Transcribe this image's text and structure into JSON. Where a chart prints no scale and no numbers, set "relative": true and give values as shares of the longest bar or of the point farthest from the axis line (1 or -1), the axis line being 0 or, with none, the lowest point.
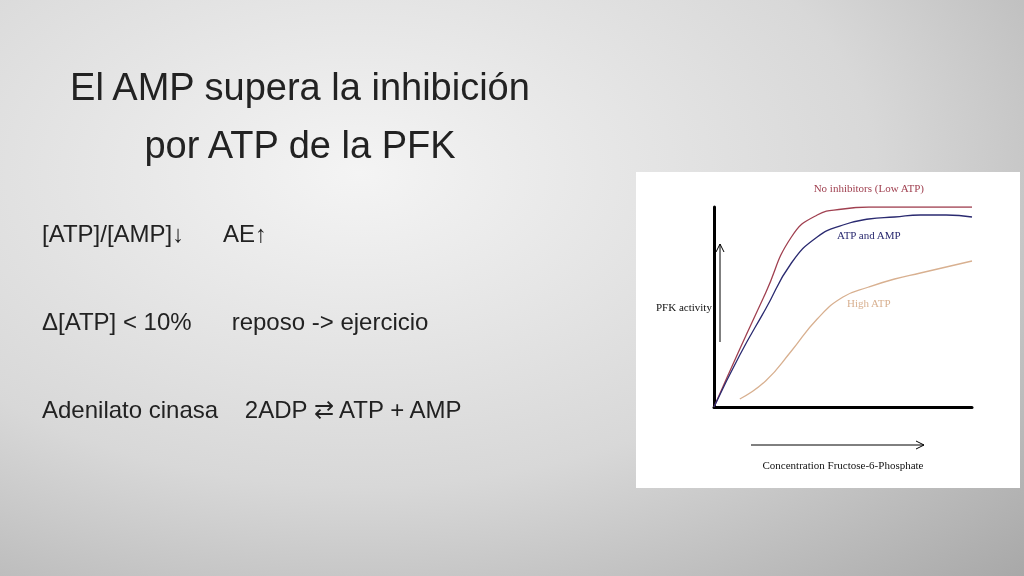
{
  "chart_data": {
    "type": "line",
    "title": "El AMP supera la inhibición por ATP de la PFK",
    "xlabel": "Concentration Fructose-6-Phosphate",
    "ylabel": "PFK activity",
    "relative": true,
    "annotations": [
      "[ATP]/[AMP]↓      AE↑",
      "Δ[ATP] < 10%      reposo -> ejercicio",
      "Adenilato cinasa    2ADP ⇄ ATP + AMP"
    ],
    "categories": [
      null,
      null,
      null,
      null,
      null,
      null,
      null,
      null,
      null,
      null,
      null
    ],
    "series": [
      {
        "name": "No inhibitors (Low ATP)",
        "color": "#a04050",
        "values": [
          0,
          0.29,
          0.57,
          0.85,
          0.96,
          0.99,
          1,
          1,
          1,
          1,
          1
        ]
      },
      {
        "name": "ATP and AMP",
        "color": "#2a2a70",
        "values": [
          0,
          0.26,
          0.49,
          0.72,
          0.85,
          0.91,
          0.94,
          0.95,
          0.96,
          0.96,
          0.95
        ]
      },
      {
        "name": "High ATP",
        "color": "#d8b090",
        "values": [
          null,
          0.04,
          0.13,
          0.28,
          0.44,
          0.55,
          0.6,
          0.64,
          0.67,
          0.7,
          0.73
        ]
      }
    ],
    "grid": false,
    "legend": false,
    "marker": "none",
    "line_style": "solid"
  }
}
